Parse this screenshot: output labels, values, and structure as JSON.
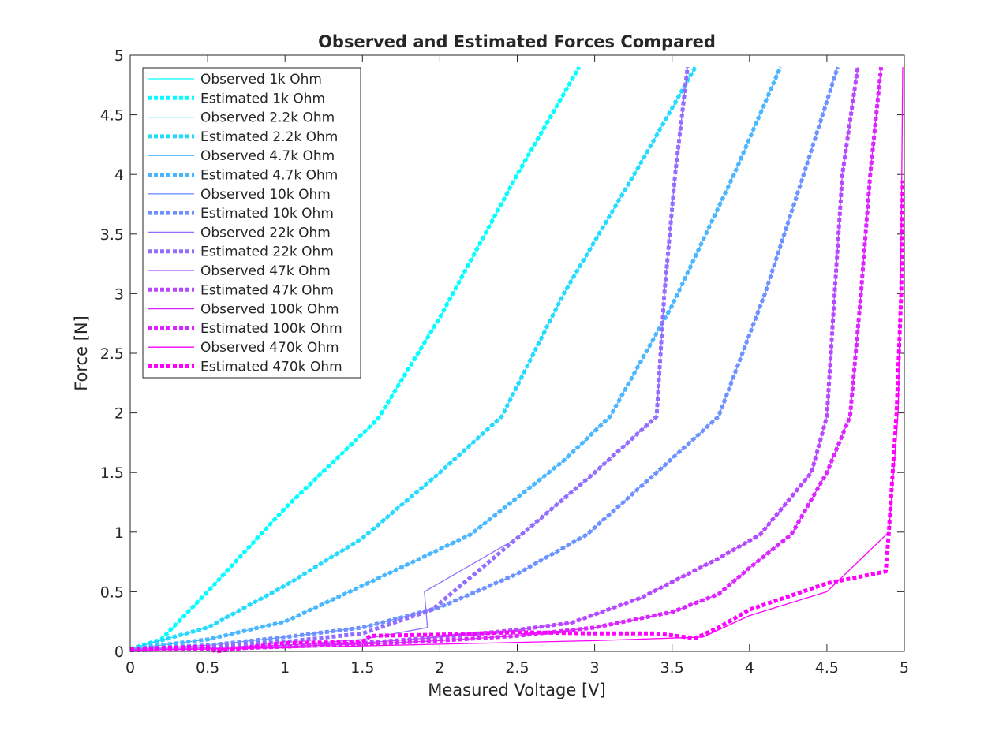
{
  "chart_data": {
    "type": "line",
    "title": "Observed and Estimated Forces Compared",
    "xlabel": "Measured Voltage [V]",
    "ylabel": "Force [N]",
    "xlim": [
      0,
      5
    ],
    "ylim": [
      0,
      5
    ],
    "xticks": [
      0,
      0.5,
      1,
      1.5,
      2,
      2.5,
      3,
      3.5,
      4,
      4.5,
      5
    ],
    "xtick_labels": [
      "0",
      "0.5",
      "1",
      "1.5",
      "2",
      "2.5",
      "3",
      "3.5",
      "4",
      "4.5",
      "5"
    ],
    "yticks": [
      0,
      0.5,
      1,
      1.5,
      2,
      2.5,
      3,
      3.5,
      4,
      4.5,
      5
    ],
    "ytick_labels": [
      "0",
      "0.5",
      "1",
      "1.5",
      "2",
      "2.5",
      "3",
      "3.5",
      "4",
      "4.5",
      "5"
    ],
    "grid": false,
    "legend_position": "top-left",
    "series": [
      {
        "name": "Observed 1k Ohm",
        "style": "solid",
        "color": "#00ffff",
        "x": [
          0,
          0.2,
          0.5,
          1.0,
          1.6,
          2.0,
          2.5,
          2.9
        ],
        "y": [
          0.02,
          0.1,
          0.5,
          1.2,
          1.95,
          2.8,
          4.0,
          4.9
        ]
      },
      {
        "name": "Estimated 1k Ohm",
        "style": "dotted",
        "color": "#00ffff",
        "x": [
          0,
          0.2,
          0.5,
          1.0,
          1.6,
          2.0,
          2.5,
          2.9
        ],
        "y": [
          0.02,
          0.1,
          0.5,
          1.2,
          1.95,
          2.8,
          4.0,
          4.9
        ]
      },
      {
        "name": "Observed 2.2k Ohm",
        "style": "solid",
        "color": "#24dbff",
        "x": [
          0,
          0.5,
          1.0,
          1.5,
          2.0,
          2.4,
          2.8,
          3.3,
          3.65
        ],
        "y": [
          0.02,
          0.2,
          0.55,
          0.95,
          1.5,
          1.97,
          3.0,
          4.1,
          4.9
        ]
      },
      {
        "name": "Estimated 2.2k Ohm",
        "style": "dotted",
        "color": "#24dbff",
        "x": [
          0,
          0.5,
          1.0,
          1.5,
          2.0,
          2.4,
          2.8,
          3.3,
          3.65
        ],
        "y": [
          0.02,
          0.2,
          0.55,
          0.95,
          1.5,
          1.97,
          3.0,
          4.1,
          4.9
        ]
      },
      {
        "name": "Observed 4.7k Ohm",
        "style": "solid",
        "color": "#49b6ff",
        "x": [
          0,
          0.5,
          1.0,
          1.5,
          2.2,
          2.8,
          3.1,
          3.5,
          3.9,
          4.2
        ],
        "y": [
          0.02,
          0.1,
          0.25,
          0.55,
          0.98,
          1.6,
          1.97,
          2.9,
          4.0,
          4.9
        ]
      },
      {
        "name": "Estimated 4.7k Ohm",
        "style": "dotted",
        "color": "#49b6ff",
        "x": [
          0,
          0.5,
          1.0,
          1.5,
          2.2,
          2.8,
          3.1,
          3.5,
          3.9,
          4.2
        ],
        "y": [
          0.02,
          0.1,
          0.25,
          0.55,
          0.98,
          1.6,
          1.97,
          2.9,
          4.0,
          4.9
        ]
      },
      {
        "name": "Observed 10k Ohm",
        "style": "solid",
        "color": "#6d92ff",
        "x": [
          0,
          0.5,
          1.0,
          1.5,
          2.0,
          2.5,
          2.95,
          3.4,
          3.8,
          4.1,
          4.35,
          4.57
        ],
        "y": [
          0.02,
          0.05,
          0.12,
          0.2,
          0.37,
          0.65,
          0.98,
          1.5,
          1.97,
          3.0,
          4.0,
          4.9
        ]
      },
      {
        "name": "Estimated 10k Ohm",
        "style": "dotted",
        "color": "#6d92ff",
        "x": [
          0,
          0.5,
          1.0,
          1.5,
          2.0,
          2.5,
          2.95,
          3.4,
          3.8,
          4.1,
          4.35,
          4.57
        ],
        "y": [
          0.02,
          0.05,
          0.12,
          0.2,
          0.37,
          0.65,
          0.98,
          1.5,
          1.97,
          3.0,
          4.0,
          4.9
        ]
      },
      {
        "name": "Observed 22k Ohm",
        "style": "solid",
        "color": "#926dff",
        "x": [
          0,
          0.5,
          1.0,
          1.5,
          1.92,
          1.9,
          2.5,
          3.0,
          3.4,
          3.45,
          3.52,
          3.6
        ],
        "y": [
          0.02,
          0.03,
          0.05,
          0.1,
          0.2,
          0.5,
          0.95,
          1.5,
          1.97,
          3.0,
          4.0,
          4.9
        ]
      },
      {
        "name": "Estimated 22k Ohm",
        "style": "dotted",
        "color": "#926dff",
        "x": [
          0,
          0.5,
          1.0,
          1.5,
          1.95,
          2.5,
          3.0,
          3.4,
          3.45,
          3.52,
          3.6
        ],
        "y": [
          0.02,
          0.04,
          0.08,
          0.15,
          0.35,
          0.95,
          1.5,
          1.97,
          3.0,
          4.0,
          4.9
        ]
      },
      {
        "name": "Observed 47k Ohm",
        "style": "solid",
        "color": "#b649ff",
        "x": [
          0,
          0.5,
          1.0,
          1.5,
          2.0,
          2.5,
          2.85,
          3.3,
          3.8,
          4.07,
          4.4,
          4.5,
          4.55,
          4.6,
          4.7
        ],
        "y": [
          0.01,
          0.02,
          0.04,
          0.07,
          0.12,
          0.18,
          0.24,
          0.45,
          0.78,
          0.98,
          1.5,
          1.97,
          3.0,
          4.0,
          4.9
        ]
      },
      {
        "name": "Estimated 47k Ohm",
        "style": "dotted",
        "color": "#b649ff",
        "x": [
          0,
          0.5,
          1.0,
          1.5,
          2.0,
          2.5,
          2.85,
          3.3,
          3.8,
          4.07,
          4.4,
          4.5,
          4.55,
          4.6,
          4.7
        ],
        "y": [
          0.01,
          0.02,
          0.04,
          0.07,
          0.12,
          0.18,
          0.24,
          0.45,
          0.78,
          0.98,
          1.5,
          1.97,
          3.0,
          4.0,
          4.9
        ]
      },
      {
        "name": "Observed 100k Ohm",
        "style": "solid",
        "color": "#db24ff",
        "x": [
          0,
          0.5,
          1.0,
          1.5,
          2.0,
          2.5,
          3.0,
          3.5,
          3.8,
          4.0,
          4.27,
          4.5,
          4.65,
          4.72,
          4.78,
          4.85
        ],
        "y": [
          0.01,
          0.02,
          0.04,
          0.06,
          0.09,
          0.13,
          0.2,
          0.33,
          0.48,
          0.7,
          0.98,
          1.5,
          1.97,
          3.0,
          4.0,
          4.9
        ]
      },
      {
        "name": "Estimated 100k Ohm",
        "style": "dotted",
        "color": "#db24ff",
        "x": [
          0,
          0.5,
          1.0,
          1.5,
          2.0,
          2.5,
          3.0,
          3.5,
          3.8,
          4.0,
          4.27,
          4.5,
          4.65,
          4.72,
          4.78,
          4.85
        ],
        "y": [
          0.01,
          0.02,
          0.04,
          0.06,
          0.09,
          0.13,
          0.2,
          0.33,
          0.48,
          0.7,
          0.98,
          1.5,
          1.97,
          3.0,
          4.0,
          4.9
        ]
      },
      {
        "name": "Observed 470k Ohm",
        "style": "solid",
        "color": "#ff00ff",
        "x": [
          0,
          1.0,
          2.0,
          3.0,
          3.7,
          4.0,
          4.5,
          4.9,
          4.96,
          4.98,
          4.99
        ],
        "y": [
          0.01,
          0.03,
          0.06,
          0.09,
          0.12,
          0.3,
          0.5,
          1.0,
          2.0,
          3.5,
          4.9
        ]
      },
      {
        "name": "Estimated 470k Ohm",
        "style": "dotted",
        "color": "#ff00ff",
        "x": [
          0,
          0.5,
          0.55,
          1.0,
          1.5,
          1.55,
          2.0,
          2.5,
          3.0,
          3.4,
          3.65,
          3.8,
          4.0,
          4.5,
          4.88,
          4.9,
          4.95,
          4.98,
          4.99
        ],
        "y": [
          0.02,
          0.04,
          0.0,
          0.07,
          0.08,
          0.13,
          0.14,
          0.16,
          0.15,
          0.15,
          0.11,
          0.2,
          0.35,
          0.57,
          0.67,
          1.0,
          2.0,
          3.0,
          3.95
        ]
      }
    ]
  }
}
